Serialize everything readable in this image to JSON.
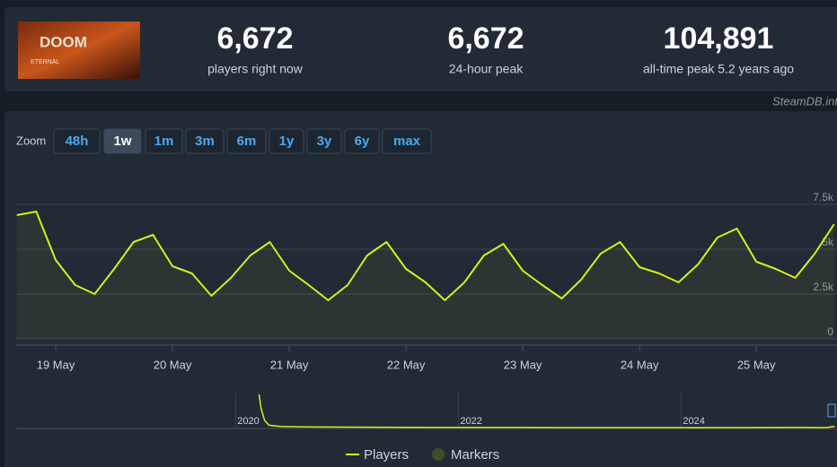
{
  "header": {
    "game_logo": {
      "title": "DOOM",
      "subtitle": "ETERNAL"
    },
    "stats": [
      {
        "value": "6,672",
        "label": "players right now"
      },
      {
        "value": "6,672",
        "label": "24-hour peak"
      },
      {
        "value": "104,891",
        "label": "all-time peak 5.2 years ago"
      }
    ]
  },
  "credit": "SteamDB.info",
  "zoom": {
    "label": "Zoom",
    "options": [
      "48h",
      "1w",
      "1m",
      "3m",
      "6m",
      "1y",
      "3y",
      "6y",
      "max"
    ],
    "active": 1
  },
  "chart_data": [
    {
      "type": "line",
      "categories": [
        null,
        null,
        "19 May",
        null,
        null,
        null,
        null,
        null,
        "20 May",
        null,
        null,
        null,
        null,
        null,
        "21 May",
        null,
        null,
        null,
        null,
        null,
        "22 May",
        null,
        null,
        null,
        null,
        null,
        "23 May",
        null,
        null,
        null,
        null,
        null,
        "24 May",
        null,
        null,
        null,
        null,
        null,
        "25 May",
        null,
        null,
        null,
        null
      ],
      "series": [
        {
          "name": "Players",
          "color": "#d3f01e",
          "values": [
            6900,
            7100,
            4400,
            3000,
            2500,
            3900,
            5400,
            5800,
            4050,
            3650,
            2400,
            3400,
            4650,
            5400,
            3800,
            3000,
            2150,
            3000,
            4650,
            5400,
            3900,
            3150,
            2150,
            3150,
            4650,
            5300,
            3800,
            3000,
            2250,
            3300,
            4750,
            5400,
            4000,
            3650,
            3150,
            4150,
            5650,
            6150,
            4300,
            3900,
            3400,
            4750,
            6400
          ]
        }
      ],
      "ylim": [
        0,
        9500
      ],
      "yticks": [
        0,
        {
          "value": 2500,
          "label": "2.5k"
        },
        {
          "value": 5000,
          "label": "5k"
        },
        {
          "value": 7500,
          "label": "7.5k"
        }
      ],
      "grid": true,
      "area": true,
      "markers_legend": {
        "name": "Markers",
        "color": "#3c4f27"
      }
    },
    {
      "type": "line",
      "x": [
        2020.21,
        2020.23,
        2020.26,
        2020.3,
        2020.4,
        2020.6,
        2021,
        2021.5,
        2022,
        2022.5,
        2023,
        2023.5,
        2024,
        2024.5,
        2025,
        2025.3,
        2025.38
      ],
      "series": [
        {
          "color": "#d3f01e",
          "values": [
            104891,
            60000,
            25000,
            10000,
            6000,
            5000,
            4000,
            3500,
            3000,
            3000,
            2500,
            2500,
            2500,
            2500,
            3000,
            2500,
            6672
          ]
        }
      ],
      "xlim": [
        2018.03,
        2025.4
      ],
      "xticks": [
        2020,
        2022,
        2024
      ],
      "ylim": [
        0,
        110000
      ]
    }
  ]
}
